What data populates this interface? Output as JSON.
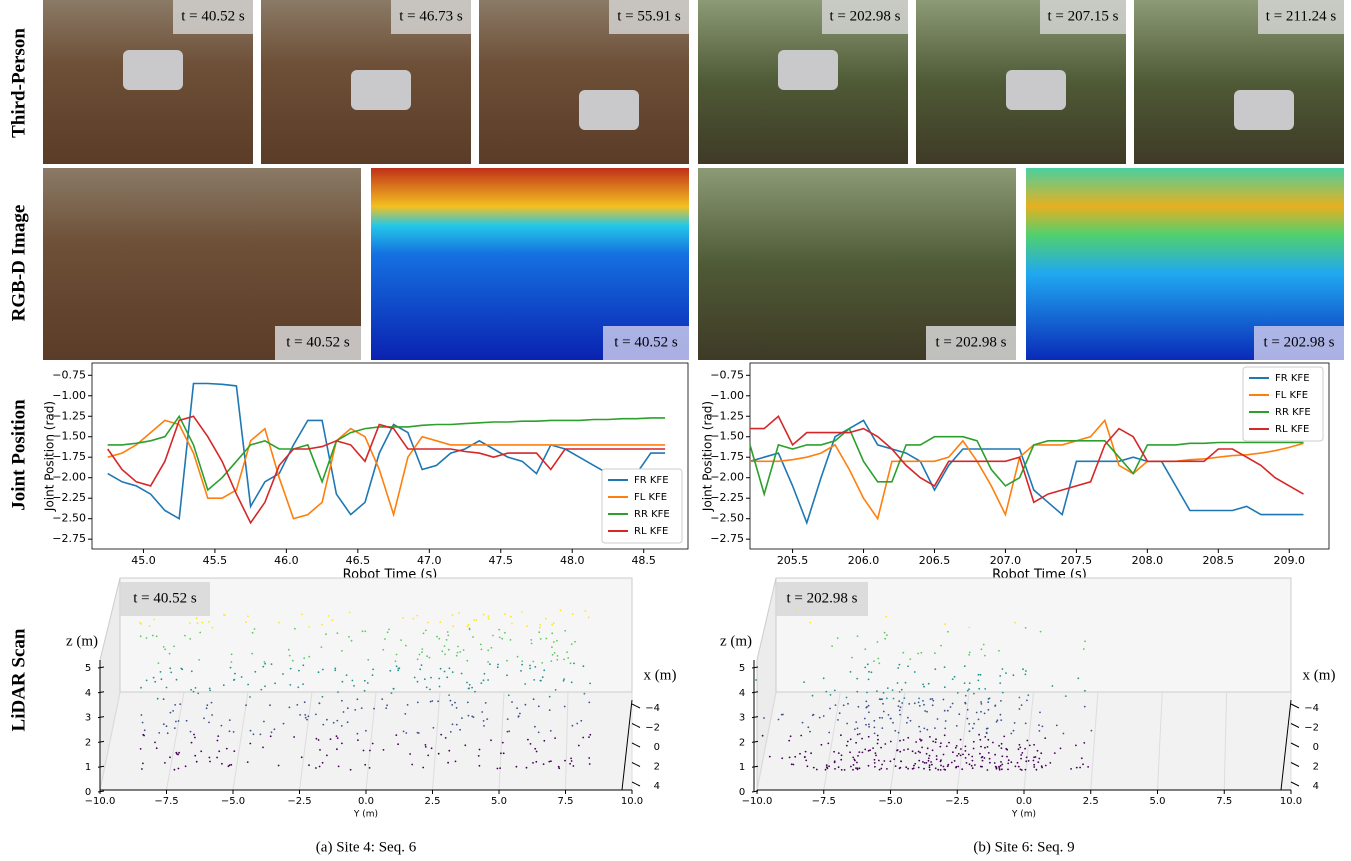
{
  "row_labels": [
    "Third-Person",
    "RGB-D Image",
    "Joint Position",
    "LiDAR Scan"
  ],
  "panels": [
    {
      "caption": "(a) Site 4: Seq. 6",
      "third_person": {
        "times": [
          "t = 40.52 s",
          "t = 46.73 s",
          "t = 55.91 s"
        ]
      },
      "rgbd": {
        "times": [
          "t = 40.52 s",
          "t = 40.52 s"
        ]
      },
      "lidar": {
        "timestamp": "t = 40.52 s",
        "z_label": "z (m)",
        "x_label": "x (m)",
        "y_label": "Y (m)",
        "z_lim": [
          0,
          5
        ],
        "z_ticks": [
          0,
          1,
          2,
          3,
          4,
          5
        ],
        "x_lim": [
          -4,
          4
        ],
        "x_ticks": [
          {
            "value": -4,
            "label": "−4"
          },
          {
            "value": -2,
            "label": "−2"
          },
          0,
          2,
          4
        ],
        "y_lim": [
          -10,
          10
        ],
        "y_ticks": [
          {
            "value": -10,
            "label": "−10.0"
          },
          {
            "value": -7.5,
            "label": "−7.5"
          },
          {
            "value": -5,
            "label": "−5.0"
          },
          {
            "value": -2.5,
            "label": "−2.5"
          },
          {
            "value": 0,
            "label": "0.0"
          },
          2.5,
          {
            "value": 5,
            "label": "5.0"
          },
          7.5,
          {
            "value": 10,
            "label": "10.0"
          }
        ]
      }
    },
    {
      "caption": "(b) Site 6: Seq. 9",
      "third_person": {
        "times": [
          "t = 202.98 s",
          "t = 207.15 s",
          "t = 211.24 s"
        ]
      },
      "rgbd": {
        "times": [
          "t = 202.98 s",
          "t = 202.98 s"
        ]
      },
      "lidar": {
        "timestamp": "t = 202.98 s",
        "z_label": "z (m)",
        "x_label": "x (m)",
        "y_label": "Y (m)",
        "z_lim": [
          0,
          5
        ],
        "z_ticks": [
          0,
          1,
          2,
          3,
          4,
          5
        ],
        "x_lim": [
          -4,
          4
        ],
        "x_ticks": [
          {
            "value": -4,
            "label": "−4"
          },
          {
            "value": -2,
            "label": "−2"
          },
          0,
          2,
          4
        ],
        "y_lim": [
          -10,
          10
        ],
        "y_ticks": [
          {
            "value": -10,
            "label": "−10.0"
          },
          {
            "value": -7.5,
            "label": "−7.5"
          },
          {
            "value": -5,
            "label": "−5.0"
          },
          {
            "value": -2.5,
            "label": "−2.5"
          },
          {
            "value": 0,
            "label": "0.0"
          },
          2.5,
          {
            "value": 5,
            "label": "5.0"
          },
          7.5,
          {
            "value": 10,
            "label": "10.0"
          }
        ]
      }
    }
  ],
  "chart_data": [
    {
      "type": "line",
      "xlabel": "Robot Time (s)",
      "ylabel": "Joint Position (rad)",
      "legend": "lower right",
      "xlim": [
        44.64,
        48.81
      ],
      "ylim": [
        -2.87,
        -0.6
      ],
      "xticks": [
        {
          "value": 45,
          "label": "45.0"
        },
        45.5,
        {
          "value": 46,
          "label": "46.0"
        },
        46.5,
        {
          "value": 47,
          "label": "47.0"
        },
        47.5,
        {
          "value": 48,
          "label": "48.0"
        },
        48.5
      ],
      "yticks": [
        {
          "value": -0.75,
          "label": "−0.75"
        },
        {
          "value": -1,
          "label": "−1.00"
        },
        {
          "value": -1.25,
          "label": "−1.25"
        },
        {
          "value": -1.5,
          "label": "−1.50"
        },
        {
          "value": -1.75,
          "label": "−1.75"
        },
        {
          "value": -2,
          "label": "−2.00"
        },
        {
          "value": -2.25,
          "label": "−2.25"
        },
        {
          "value": -2.5,
          "label": "−2.50"
        },
        {
          "value": -2.75,
          "label": "−2.75"
        }
      ],
      "x": [
        44.75,
        44.85,
        44.95,
        45.05,
        45.15,
        45.25,
        45.35,
        45.45,
        45.55,
        45.65,
        45.75,
        45.85,
        45.95,
        46.05,
        46.15,
        46.25,
        46.35,
        46.45,
        46.55,
        46.65,
        46.75,
        46.85,
        46.95,
        47.05,
        47.15,
        47.25,
        47.35,
        47.45,
        47.55,
        47.65,
        47.75,
        47.85,
        47.95,
        48.05,
        48.15,
        48.25,
        48.35,
        48.45,
        48.55,
        48.65
      ],
      "series": [
        {
          "name": "FR KFE",
          "color": "#1f77b4",
          "values": [
            -1.95,
            -2.05,
            -2.1,
            -2.2,
            -2.4,
            -2.5,
            -0.85,
            -0.85,
            -0.86,
            -0.88,
            -2.35,
            -2.05,
            -1.95,
            -1.6,
            -1.3,
            -1.3,
            -2.2,
            -2.45,
            -2.3,
            -1.7,
            -1.35,
            -1.45,
            -1.9,
            -1.85,
            -1.7,
            -1.65,
            -1.55,
            -1.65,
            -1.75,
            -1.8,
            -1.95,
            -1.6,
            -1.65,
            -1.75,
            -1.85,
            -1.95,
            -2.05,
            -1.95,
            -1.7,
            -1.7
          ]
        },
        {
          "name": "FL KFE",
          "color": "#ff7f0e",
          "values": [
            -1.75,
            -1.7,
            -1.6,
            -1.45,
            -1.3,
            -1.35,
            -1.7,
            -2.25,
            -2.25,
            -2.15,
            -1.55,
            -1.4,
            -2.0,
            -2.5,
            -2.45,
            -2.3,
            -1.55,
            -1.4,
            -1.5,
            -1.9,
            -2.45,
            -1.75,
            -1.5,
            -1.55,
            -1.6,
            -1.6,
            -1.6,
            -1.6,
            -1.6,
            -1.6,
            -1.6,
            -1.6,
            -1.6,
            -1.6,
            -1.6,
            -1.6,
            -1.6,
            -1.6,
            -1.6,
            -1.6
          ]
        },
        {
          "name": "RR KFE",
          "color": "#2ca02c",
          "values": [
            -1.6,
            -1.6,
            -1.58,
            -1.55,
            -1.5,
            -1.25,
            -1.6,
            -2.15,
            -2.0,
            -1.8,
            -1.6,
            -1.55,
            -1.65,
            -1.65,
            -1.6,
            -2.05,
            -1.55,
            -1.45,
            -1.4,
            -1.38,
            -1.38,
            -1.38,
            -1.36,
            -1.35,
            -1.35,
            -1.34,
            -1.33,
            -1.32,
            -1.32,
            -1.31,
            -1.31,
            -1.3,
            -1.3,
            -1.3,
            -1.29,
            -1.29,
            -1.28,
            -1.28,
            -1.27,
            -1.27
          ]
        },
        {
          "name": "RL KFE",
          "color": "#d62728",
          "values": [
            -1.65,
            -1.9,
            -2.05,
            -2.1,
            -1.8,
            -1.3,
            -1.25,
            -1.5,
            -1.8,
            -2.2,
            -2.55,
            -2.3,
            -1.85,
            -1.65,
            -1.65,
            -1.62,
            -1.55,
            -1.6,
            -1.8,
            -1.35,
            -1.4,
            -1.65,
            -1.65,
            -1.65,
            -1.65,
            -1.68,
            -1.7,
            -1.75,
            -1.7,
            -1.7,
            -1.7,
            -1.9,
            -1.65,
            -1.65,
            -1.65,
            -1.65,
            -1.65,
            -1.65,
            -1.65,
            -1.65
          ]
        }
      ]
    },
    {
      "type": "line",
      "xlabel": "Robot Time (s)",
      "ylabel": "Joint Position (rad)",
      "legend": "upper right",
      "xlim": [
        205.2,
        209.28
      ],
      "ylim": [
        -2.87,
        -0.6
      ],
      "xticks": [
        205.5,
        {
          "value": 206,
          "label": "206.0"
        },
        206.5,
        {
          "value": 207,
          "label": "207.0"
        },
        207.5,
        {
          "value": 208,
          "label": "208.0"
        },
        208.5,
        {
          "value": 209,
          "label": "209.0"
        }
      ],
      "yticks": [
        {
          "value": -0.75,
          "label": "−0.75"
        },
        {
          "value": -1,
          "label": "−1.00"
        },
        {
          "value": -1.25,
          "label": "−1.25"
        },
        {
          "value": -1.5,
          "label": "−1.50"
        },
        {
          "value": -1.75,
          "label": "−1.75"
        },
        {
          "value": -2,
          "label": "−2.00"
        },
        {
          "value": -2.25,
          "label": "−2.25"
        },
        {
          "value": -2.5,
          "label": "−2.50"
        },
        {
          "value": -2.75,
          "label": "−2.75"
        }
      ],
      "x": [
        205.2,
        205.3,
        205.4,
        205.5,
        205.6,
        205.7,
        205.8,
        205.9,
        206.0,
        206.1,
        206.2,
        206.3,
        206.4,
        206.5,
        206.6,
        206.7,
        206.8,
        206.9,
        207.0,
        207.1,
        207.2,
        207.3,
        207.4,
        207.5,
        207.6,
        207.7,
        207.8,
        207.9,
        208.0,
        208.1,
        208.2,
        208.3,
        208.4,
        208.5,
        208.6,
        208.7,
        208.8,
        208.9,
        209.0,
        209.1
      ],
      "series": [
        {
          "name": "FR KFE",
          "color": "#1f77b4",
          "values": [
            -1.8,
            -1.75,
            -1.7,
            -2.1,
            -2.55,
            -2.0,
            -1.5,
            -1.4,
            -1.3,
            -1.6,
            -1.65,
            -1.7,
            -1.8,
            -2.15,
            -1.85,
            -1.65,
            -1.65,
            -1.65,
            -1.65,
            -1.65,
            -2.15,
            -2.3,
            -2.45,
            -1.8,
            -1.8,
            -1.8,
            -1.8,
            -1.75,
            -1.8,
            -1.8,
            -2.1,
            -2.4,
            -2.4,
            -2.4,
            -2.4,
            -2.35,
            -2.45,
            -2.45,
            -2.45,
            -2.45
          ]
        },
        {
          "name": "FL KFE",
          "color": "#ff7f0e",
          "values": [
            -1.8,
            -1.8,
            -1.8,
            -1.78,
            -1.75,
            -1.7,
            -1.6,
            -1.9,
            -2.25,
            -2.5,
            -1.8,
            -1.8,
            -1.8,
            -1.8,
            -1.75,
            -1.55,
            -1.8,
            -2.1,
            -2.45,
            -1.75,
            -1.6,
            -1.6,
            -1.6,
            -1.55,
            -1.5,
            -1.3,
            -1.85,
            -1.95,
            -1.8,
            -1.8,
            -1.8,
            -1.78,
            -1.77,
            -1.75,
            -1.73,
            -1.72,
            -1.7,
            -1.67,
            -1.63,
            -1.58
          ]
        },
        {
          "name": "RR KFE",
          "color": "#2ca02c",
          "values": [
            -1.6,
            -2.2,
            -1.6,
            -1.65,
            -1.6,
            -1.6,
            -1.55,
            -1.4,
            -1.8,
            -2.05,
            -2.05,
            -1.6,
            -1.6,
            -1.5,
            -1.5,
            -1.5,
            -1.55,
            -1.9,
            -2.1,
            -2.0,
            -1.6,
            -1.55,
            -1.55,
            -1.55,
            -1.55,
            -1.55,
            -1.75,
            -1.95,
            -1.6,
            -1.6,
            -1.6,
            -1.58,
            -1.58,
            -1.57,
            -1.57,
            -1.57,
            -1.57,
            -1.57,
            -1.57,
            -1.57
          ]
        },
        {
          "name": "RL KFE",
          "color": "#d62728",
          "values": [
            -1.4,
            -1.4,
            -1.25,
            -1.6,
            -1.45,
            -1.45,
            -1.45,
            -1.45,
            -1.4,
            -1.5,
            -1.65,
            -1.85,
            -2.0,
            -2.1,
            -1.8,
            -1.8,
            -1.8,
            -1.8,
            -1.8,
            -1.75,
            -2.3,
            -2.2,
            -2.15,
            -2.1,
            -2.05,
            -1.6,
            -1.4,
            -1.5,
            -1.8,
            -1.8,
            -1.8,
            -1.8,
            -1.8,
            -1.65,
            -1.65,
            -1.75,
            -1.85,
            -2.0,
            -2.1,
            -2.2
          ]
        }
      ]
    }
  ]
}
